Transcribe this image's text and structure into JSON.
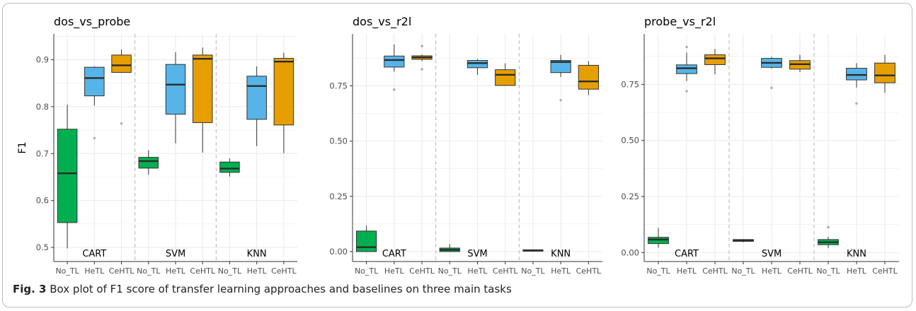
{
  "caption": {
    "label": "Fig. 3",
    "text": "Box plot of F1 score of transfer learning approaches and baselines on three main tasks"
  },
  "colors": {
    "No_TL": "#00b050",
    "HeTL": "#56b4e9",
    "CeHTL": "#e69f00",
    "median": "#2b2b2b",
    "panel_bg": "#ffffff",
    "grid": "#ebebeb",
    "separator": "#b3b3b3",
    "outlier": "#b0b0b0"
  },
  "chart_data": [
    {
      "type": "box",
      "title": "dos_vs_probe",
      "ylabel": "F1",
      "ylim": [
        0.47,
        0.955
      ],
      "yticks": [
        "0.5",
        "0.6",
        "0.7",
        "0.8",
        "0.9"
      ],
      "ytick_values": [
        0.5,
        0.6,
        0.7,
        0.8,
        0.9
      ],
      "categories": [
        "No_TL",
        "HeTL",
        "CeHTL",
        "No_TL",
        "HeTL",
        "CeHTL",
        "No_TL",
        "HeTL",
        "CeHTL"
      ],
      "group_labels": [
        "CART",
        "SVM",
        "KNN"
      ],
      "grid": true,
      "boxes": [
        {
          "group": "CART",
          "method": "No_TL",
          "min": 0.498,
          "q1": 0.553,
          "median": 0.658,
          "q3": 0.752,
          "max": 0.804,
          "outliers": []
        },
        {
          "group": "CART",
          "method": "HeTL",
          "min": 0.802,
          "q1": 0.823,
          "median": 0.861,
          "q3": 0.884,
          "max": 0.886,
          "outliers": [
            0.733
          ]
        },
        {
          "group": "CART",
          "method": "CeHTL",
          "min": 0.872,
          "q1": 0.873,
          "median": 0.888,
          "q3": 0.91,
          "max": 0.922,
          "outliers": [
            0.764
          ]
        },
        {
          "group": "SVM",
          "method": "No_TL",
          "min": 0.655,
          "q1": 0.669,
          "median": 0.684,
          "q3": 0.692,
          "max": 0.707,
          "outliers": []
        },
        {
          "group": "SVM",
          "method": "HeTL",
          "min": 0.722,
          "q1": 0.784,
          "median": 0.847,
          "q3": 0.89,
          "max": 0.916,
          "outliers": []
        },
        {
          "group": "SVM",
          "method": "CeHTL",
          "min": 0.702,
          "q1": 0.766,
          "median": 0.902,
          "q3": 0.91,
          "max": 0.926,
          "outliers": []
        },
        {
          "group": "KNN",
          "method": "No_TL",
          "min": 0.651,
          "q1": 0.66,
          "median": 0.668,
          "q3": 0.682,
          "max": 0.69,
          "outliers": []
        },
        {
          "group": "KNN",
          "method": "HeTL",
          "min": 0.716,
          "q1": 0.773,
          "median": 0.844,
          "q3": 0.865,
          "max": 0.886,
          "outliers": []
        },
        {
          "group": "KNN",
          "method": "CeHTL",
          "min": 0.701,
          "q1": 0.761,
          "median": 0.896,
          "q3": 0.903,
          "max": 0.915,
          "outliers": []
        }
      ]
    },
    {
      "type": "box",
      "title": "dos_vs_r2l",
      "ylabel": "",
      "ylim": [
        -0.045,
        0.985
      ],
      "yticks": [
        "0.00",
        "0.25",
        "0.50",
        "0.75"
      ],
      "ytick_values": [
        0.0,
        0.25,
        0.5,
        0.75
      ],
      "categories": [
        "No_TL",
        "HeTL",
        "CeHTL",
        "No_TL",
        "HeTL",
        "CeHTL",
        "No_TL",
        "HeTL",
        "CeHTL"
      ],
      "group_labels": [
        "CART",
        "SVM",
        "KNN"
      ],
      "grid": true,
      "boxes": [
        {
          "group": "CART",
          "method": "No_TL",
          "min": 0.0,
          "q1": 0.0,
          "median": 0.02,
          "q3": 0.093,
          "max": 0.118,
          "outliers": []
        },
        {
          "group": "CART",
          "method": "HeTL",
          "min": 0.815,
          "q1": 0.835,
          "median": 0.867,
          "q3": 0.885,
          "max": 0.938,
          "outliers": [
            0.733
          ]
        },
        {
          "group": "CART",
          "method": "CeHTL",
          "min": 0.862,
          "q1": 0.87,
          "median": 0.879,
          "q3": 0.886,
          "max": 0.892,
          "outliers": [
            0.825,
            0.93
          ]
        },
        {
          "group": "SVM",
          "method": "No_TL",
          "min": 0.0,
          "q1": 0.0,
          "median": 0.008,
          "q3": 0.016,
          "max": 0.034,
          "outliers": []
        },
        {
          "group": "SVM",
          "method": "HeTL",
          "min": 0.8,
          "q1": 0.832,
          "median": 0.853,
          "q3": 0.865,
          "max": 0.872,
          "outliers": []
        },
        {
          "group": "SVM",
          "method": "CeHTL",
          "min": 0.75,
          "q1": 0.752,
          "median": 0.8,
          "q3": 0.823,
          "max": 0.852,
          "outliers": []
        },
        {
          "group": "KNN",
          "method": "No_TL",
          "min": 0.0,
          "q1": 0.002,
          "median": 0.005,
          "q3": 0.008,
          "max": 0.01,
          "outliers": []
        },
        {
          "group": "KNN",
          "method": "HeTL",
          "min": 0.79,
          "q1": 0.81,
          "median": 0.858,
          "q3": 0.865,
          "max": 0.89,
          "outliers": [
            0.685
          ]
        },
        {
          "group": "KNN",
          "method": "CeHTL",
          "min": 0.708,
          "q1": 0.735,
          "median": 0.77,
          "q3": 0.843,
          "max": 0.862,
          "outliers": []
        }
      ]
    },
    {
      "type": "box",
      "title": "probe_vs_r2l",
      "ylabel": "",
      "ylim": [
        -0.04,
        0.975
      ],
      "yticks": [
        "0.00",
        "0.25",
        "0.50",
        "0.75"
      ],
      "ytick_values": [
        0.0,
        0.25,
        0.5,
        0.75
      ],
      "categories": [
        "No_TL",
        "HeTL",
        "CeHTL",
        "No_TL",
        "HeTL",
        "CeHTL",
        "No_TL",
        "HeTL",
        "CeHTL"
      ],
      "group_labels": [
        "CART",
        "SVM",
        "KNN"
      ],
      "grid": true,
      "boxes": [
        {
          "group": "CART",
          "method": "No_TL",
          "min": 0.022,
          "q1": 0.04,
          "median": 0.058,
          "q3": 0.068,
          "max": 0.11,
          "outliers": []
        },
        {
          "group": "CART",
          "method": "HeTL",
          "min": 0.765,
          "q1": 0.798,
          "median": 0.822,
          "q3": 0.837,
          "max": 0.892,
          "outliers": [
            0.72,
            0.917
          ]
        },
        {
          "group": "CART",
          "method": "CeHTL",
          "min": 0.795,
          "q1": 0.838,
          "median": 0.866,
          "q3": 0.882,
          "max": 0.908,
          "outliers": []
        },
        {
          "group": "SVM",
          "method": "No_TL",
          "min": 0.046,
          "q1": 0.05,
          "median": 0.054,
          "q3": 0.058,
          "max": 0.06,
          "outliers": []
        },
        {
          "group": "SVM",
          "method": "HeTL",
          "min": 0.82,
          "q1": 0.826,
          "median": 0.846,
          "q3": 0.866,
          "max": 0.873,
          "outliers": [
            0.735
          ]
        },
        {
          "group": "SVM",
          "method": "CeHTL",
          "min": 0.805,
          "q1": 0.818,
          "median": 0.84,
          "q3": 0.856,
          "max": 0.882,
          "outliers": []
        },
        {
          "group": "KNN",
          "method": "No_TL",
          "min": 0.02,
          "q1": 0.035,
          "median": 0.046,
          "q3": 0.058,
          "max": 0.07,
          "outliers": [
            0.113
          ]
        },
        {
          "group": "KNN",
          "method": "HeTL",
          "min": 0.736,
          "q1": 0.77,
          "median": 0.792,
          "q3": 0.822,
          "max": 0.845,
          "outliers": [
            0.665
          ]
        },
        {
          "group": "KNN",
          "method": "CeHTL",
          "min": 0.712,
          "q1": 0.757,
          "median": 0.79,
          "q3": 0.845,
          "max": 0.882,
          "outliers": []
        }
      ]
    }
  ]
}
